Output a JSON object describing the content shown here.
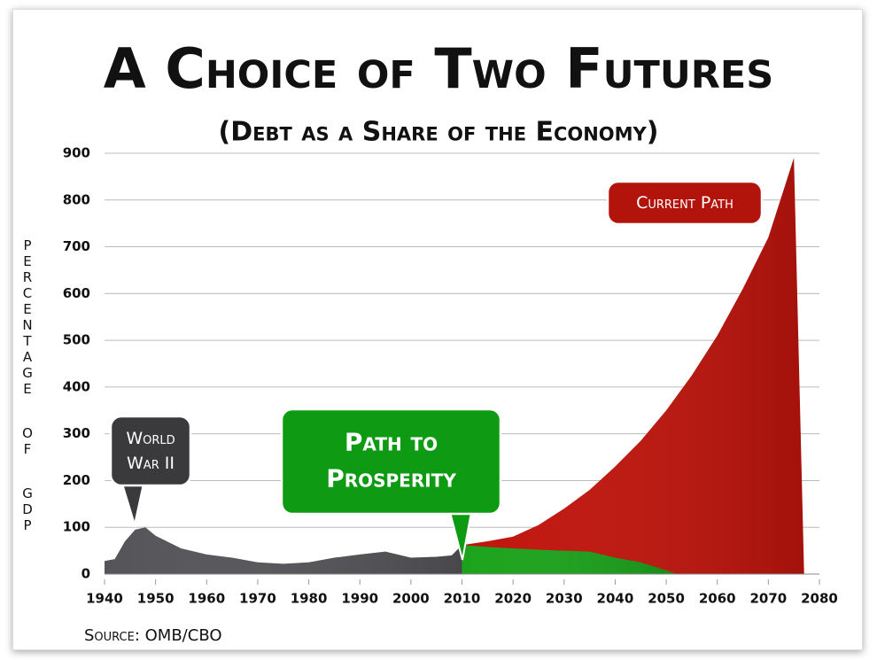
{
  "chart_data": {
    "type": "area",
    "title": "A Choice of Two Futures",
    "subtitle": "(Debt as a Share of the Economy)",
    "y_label": "Percentage of GDP",
    "source": "Source: OMB/CBO",
    "xlim": [
      1940,
      2080
    ],
    "xticks": [
      1940,
      1950,
      1960,
      1970,
      1980,
      1990,
      2000,
      2010,
      2020,
      2030,
      2040,
      2050,
      2060,
      2070,
      2080
    ],
    "ylim": [
      0,
      900
    ],
    "yticks": [
      0,
      100,
      200,
      300,
      400,
      500,
      600,
      700,
      800,
      900
    ],
    "grid": true,
    "series": [
      {
        "name": "World War II",
        "color": "#555559",
        "x": [
          1940,
          1942,
          1944,
          1946,
          1948,
          1950,
          1955,
          1960,
          1965,
          1970,
          1975,
          1980,
          1985,
          1990,
          1995,
          2000,
          2005,
          2008,
          2010
        ],
        "values": [
          28,
          32,
          70,
          95,
          100,
          82,
          55,
          42,
          35,
          25,
          22,
          25,
          35,
          42,
          48,
          35,
          37,
          40,
          62
        ]
      },
      {
        "name": "Current Path",
        "color": "#c0140c",
        "x": [
          2010,
          2015,
          2020,
          2025,
          2030,
          2035,
          2040,
          2045,
          2050,
          2055,
          2060,
          2065,
          2070,
          2075,
          2077
        ],
        "values": [
          62,
          70,
          80,
          105,
          140,
          180,
          230,
          285,
          350,
          425,
          510,
          610,
          720,
          890,
          0
        ]
      },
      {
        "name": "Path to Prosperity",
        "color": "#1ba31b",
        "x": [
          2010,
          2015,
          2020,
          2025,
          2030,
          2035,
          2040,
          2045,
          2050,
          2052
        ],
        "values": [
          62,
          58,
          55,
          52,
          50,
          48,
          35,
          25,
          8,
          0
        ]
      }
    ]
  }
}
